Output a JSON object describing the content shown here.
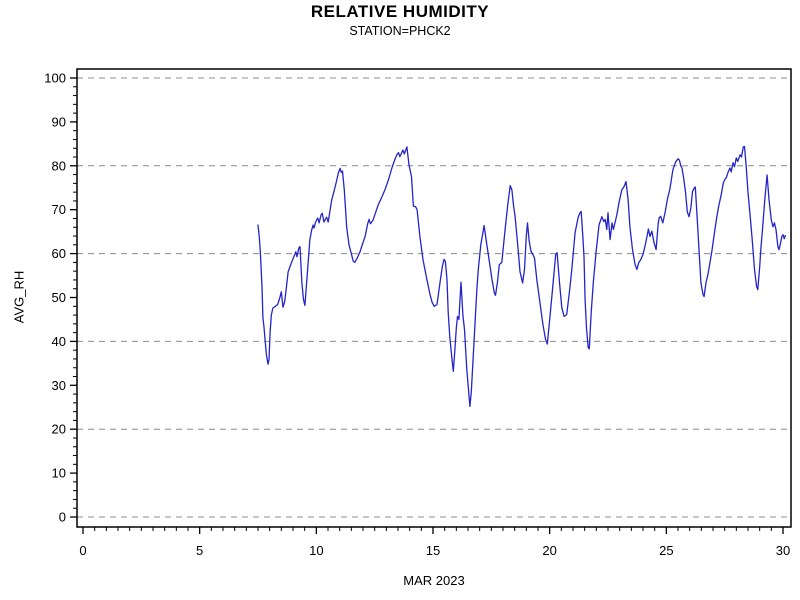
{
  "header": {
    "title": "RELATIVE HUMIDITY",
    "subtitle": "STATION=PHCK2"
  },
  "chart_data": {
    "type": "line",
    "title": "RELATIVE HUMIDITY",
    "subtitle": "STATION=PHCK2",
    "xlabel": "MAR 2023",
    "ylabel": "AVG_RH",
    "xlim": [
      0,
      30
    ],
    "ylim": [
      0,
      100
    ],
    "x_major_ticks": [
      0,
      5,
      10,
      15,
      20,
      25,
      30
    ],
    "x_minor_step": 0.5,
    "y_major_ticks": [
      0,
      10,
      20,
      30,
      40,
      50,
      60,
      70,
      80,
      90,
      100
    ],
    "y_minor_step": 2,
    "gridlines_y": [
      0,
      20,
      40,
      60,
      80,
      100
    ],
    "grid_style": "dashed",
    "legend_position": "none",
    "line_color": "#2424C8",
    "grid_color": "#8C8C8C",
    "axis_color": "#000000",
    "series": [
      {
        "name": "AVG_RH",
        "points": [
          [
            7.5,
            66.5
          ],
          [
            7.55,
            64
          ],
          [
            7.6,
            60.5
          ],
          [
            7.67,
            52.5
          ],
          [
            7.71,
            45.5
          ],
          [
            7.76,
            43
          ],
          [
            7.8,
            40.5
          ],
          [
            7.86,
            37
          ],
          [
            7.93,
            34.8
          ],
          [
            7.97,
            35.8
          ],
          [
            8.02,
            42
          ],
          [
            8.07,
            46
          ],
          [
            8.14,
            47.6
          ],
          [
            8.25,
            48
          ],
          [
            8.35,
            48.5
          ],
          [
            8.44,
            50
          ],
          [
            8.5,
            51.3
          ],
          [
            8.57,
            47.8
          ],
          [
            8.64,
            49
          ],
          [
            8.72,
            52.5
          ],
          [
            8.79,
            55.8
          ],
          [
            8.9,
            57.5
          ],
          [
            9.0,
            58.8
          ],
          [
            9.07,
            59.7
          ],
          [
            9.12,
            60.4
          ],
          [
            9.17,
            59.3
          ],
          [
            9.25,
            61.3
          ],
          [
            9.3,
            61.6
          ],
          [
            9.38,
            53.3
          ],
          [
            9.45,
            49.5
          ],
          [
            9.51,
            48.2
          ],
          [
            9.58,
            53
          ],
          [
            9.65,
            58.1
          ],
          [
            9.72,
            63.1
          ],
          [
            9.8,
            65.4
          ],
          [
            9.86,
            66.5
          ],
          [
            9.9,
            65.8
          ],
          [
            9.97,
            67.2
          ],
          [
            10.06,
            68.1
          ],
          [
            10.12,
            67
          ],
          [
            10.2,
            68.8
          ],
          [
            10.25,
            69.2
          ],
          [
            10.33,
            67.2
          ],
          [
            10.44,
            68.3
          ],
          [
            10.51,
            67.2
          ],
          [
            10.59,
            69.9
          ],
          [
            10.66,
            72.2
          ],
          [
            10.75,
            74
          ],
          [
            10.85,
            76.2
          ],
          [
            10.95,
            78.5
          ],
          [
            11.02,
            79.4
          ],
          [
            11.07,
            78.5
          ],
          [
            11.12,
            78.8
          ],
          [
            11.2,
            74.5
          ],
          [
            11.3,
            66
          ],
          [
            11.4,
            62
          ],
          [
            11.5,
            60
          ],
          [
            11.58,
            58.3
          ],
          [
            11.65,
            58
          ],
          [
            11.75,
            59
          ],
          [
            11.87,
            60.4
          ],
          [
            12.0,
            62.5
          ],
          [
            12.09,
            63.9
          ],
          [
            12.2,
            66.8
          ],
          [
            12.26,
            67.8
          ],
          [
            12.32,
            66.8
          ],
          [
            12.43,
            67.6
          ],
          [
            12.55,
            69.5
          ],
          [
            12.65,
            71.1
          ],
          [
            12.8,
            72.8
          ],
          [
            12.94,
            74.5
          ],
          [
            13.1,
            77
          ],
          [
            13.24,
            79.5
          ],
          [
            13.35,
            81.2
          ],
          [
            13.45,
            82.5
          ],
          [
            13.52,
            83
          ],
          [
            13.58,
            82.1
          ],
          [
            13.71,
            83.6
          ],
          [
            13.77,
            82.7
          ],
          [
            13.88,
            84.3
          ],
          [
            13.97,
            80.2
          ],
          [
            14.08,
            77.5
          ],
          [
            14.16,
            70.8
          ],
          [
            14.25,
            70.7
          ],
          [
            14.32,
            70
          ],
          [
            14.44,
            63.9
          ],
          [
            14.57,
            58.6
          ],
          [
            14.74,
            54.1
          ],
          [
            14.87,
            50.7
          ],
          [
            14.96,
            48.9
          ],
          [
            15.05,
            48
          ],
          [
            15.17,
            48.4
          ],
          [
            15.3,
            53.4
          ],
          [
            15.4,
            57
          ],
          [
            15.47,
            58.7
          ],
          [
            15.53,
            58.2
          ],
          [
            15.6,
            54
          ],
          [
            15.65,
            46.6
          ],
          [
            15.72,
            41
          ],
          [
            15.8,
            36.6
          ],
          [
            15.87,
            33.2
          ],
          [
            15.93,
            37.5
          ],
          [
            16.0,
            43
          ],
          [
            16.05,
            45.7
          ],
          [
            16.11,
            45
          ],
          [
            16.2,
            53.5
          ],
          [
            16.28,
            46
          ],
          [
            16.35,
            42.7
          ],
          [
            16.45,
            33.6
          ],
          [
            16.52,
            29
          ],
          [
            16.58,
            25.2
          ],
          [
            16.64,
            28.5
          ],
          [
            16.72,
            36
          ],
          [
            16.8,
            44
          ],
          [
            16.88,
            52
          ],
          [
            16.94,
            56.4
          ],
          [
            17.05,
            62
          ],
          [
            17.19,
            66.4
          ],
          [
            17.28,
            63
          ],
          [
            17.37,
            59.8
          ],
          [
            17.53,
            54.1
          ],
          [
            17.63,
            51
          ],
          [
            17.68,
            50.5
          ],
          [
            17.76,
            53.4
          ],
          [
            17.84,
            57.5
          ],
          [
            17.95,
            58
          ],
          [
            18.09,
            65.5
          ],
          [
            18.2,
            71
          ],
          [
            18.31,
            75.5
          ],
          [
            18.38,
            74.5
          ],
          [
            18.45,
            71
          ],
          [
            18.52,
            68.4
          ],
          [
            18.62,
            62.5
          ],
          [
            18.73,
            55.9
          ],
          [
            18.84,
            53.3
          ],
          [
            18.92,
            56.4
          ],
          [
            19.0,
            64
          ],
          [
            19.05,
            67
          ],
          [
            19.12,
            63
          ],
          [
            19.2,
            60.5
          ],
          [
            19.28,
            59.8
          ],
          [
            19.35,
            59
          ],
          [
            19.45,
            54.1
          ],
          [
            19.58,
            48.9
          ],
          [
            19.71,
            43.9
          ],
          [
            19.82,
            40.5
          ],
          [
            19.9,
            39.4
          ],
          [
            20.0,
            45
          ],
          [
            20.12,
            51.8
          ],
          [
            20.26,
            59.8
          ],
          [
            20.32,
            60.2
          ],
          [
            20.42,
            53.4
          ],
          [
            20.52,
            47.7
          ],
          [
            20.62,
            45.7
          ],
          [
            20.73,
            46.1
          ],
          [
            20.86,
            51.8
          ],
          [
            20.95,
            56.4
          ],
          [
            21.09,
            64.8
          ],
          [
            21.22,
            68.2
          ],
          [
            21.3,
            69.3
          ],
          [
            21.35,
            69.6
          ],
          [
            21.42,
            64
          ],
          [
            21.47,
            59.3
          ],
          [
            21.52,
            49.5
          ],
          [
            21.58,
            43
          ],
          [
            21.65,
            38.6
          ],
          [
            21.7,
            38.3
          ],
          [
            21.78,
            46.6
          ],
          [
            21.87,
            53.4
          ],
          [
            22.0,
            60.9
          ],
          [
            22.12,
            66.6
          ],
          [
            22.24,
            68.4
          ],
          [
            22.32,
            67.3
          ],
          [
            22.38,
            67.8
          ],
          [
            22.45,
            65.5
          ],
          [
            22.5,
            69.3
          ],
          [
            22.59,
            63.2
          ],
          [
            22.67,
            67
          ],
          [
            22.73,
            65.5
          ],
          [
            22.88,
            68.9
          ],
          [
            22.97,
            71.6
          ],
          [
            23.09,
            74.5
          ],
          [
            23.18,
            75.2
          ],
          [
            23.27,
            76.4
          ],
          [
            23.36,
            72.3
          ],
          [
            23.44,
            66.1
          ],
          [
            23.55,
            60.9
          ],
          [
            23.66,
            57.5
          ],
          [
            23.74,
            56.4
          ],
          [
            23.82,
            58
          ],
          [
            23.9,
            58.6
          ],
          [
            24.0,
            59.8
          ],
          [
            24.1,
            62
          ],
          [
            24.17,
            63.9
          ],
          [
            24.23,
            65.6
          ],
          [
            24.3,
            63.9
          ],
          [
            24.38,
            65.1
          ],
          [
            24.47,
            62.5
          ],
          [
            24.56,
            60.9
          ],
          [
            24.65,
            66.9
          ],
          [
            24.7,
            68.2
          ],
          [
            24.76,
            68.5
          ],
          [
            24.85,
            67
          ],
          [
            24.95,
            69.5
          ],
          [
            25.05,
            72.5
          ],
          [
            25.15,
            74.6
          ],
          [
            25.28,
            79.1
          ],
          [
            25.4,
            80.9
          ],
          [
            25.5,
            81.6
          ],
          [
            25.56,
            81.3
          ],
          [
            25.62,
            80
          ],
          [
            25.67,
            79.5
          ],
          [
            25.75,
            77
          ],
          [
            25.82,
            74
          ],
          [
            25.9,
            69.5
          ],
          [
            25.97,
            68.4
          ],
          [
            26.05,
            70.3
          ],
          [
            26.12,
            74.1
          ],
          [
            26.18,
            74.8
          ],
          [
            26.24,
            75.2
          ],
          [
            26.32,
            68.4
          ],
          [
            26.4,
            60.9
          ],
          [
            26.48,
            53.4
          ],
          [
            26.57,
            50.7
          ],
          [
            26.62,
            50.2
          ],
          [
            26.7,
            53.4
          ],
          [
            26.78,
            55.2
          ],
          [
            26.87,
            58
          ],
          [
            26.96,
            60.9
          ],
          [
            27.08,
            65.5
          ],
          [
            27.16,
            68.2
          ],
          [
            27.24,
            70.7
          ],
          [
            27.35,
            73.4
          ],
          [
            27.44,
            76.1
          ],
          [
            27.52,
            77
          ],
          [
            27.57,
            77.3
          ],
          [
            27.65,
            78.6
          ],
          [
            27.73,
            79.5
          ],
          [
            27.78,
            78.6
          ],
          [
            27.86,
            80.7
          ],
          [
            27.92,
            79.8
          ],
          [
            28.0,
            81.8
          ],
          [
            28.06,
            81
          ],
          [
            28.16,
            82.5
          ],
          [
            28.22,
            82
          ],
          [
            28.3,
            84.3
          ],
          [
            28.35,
            84.4
          ],
          [
            28.42,
            80.2
          ],
          [
            28.5,
            73.9
          ],
          [
            28.6,
            68.2
          ],
          [
            28.68,
            63.2
          ],
          [
            28.78,
            56.4
          ],
          [
            28.87,
            52.5
          ],
          [
            28.92,
            51.8
          ],
          [
            29.0,
            57
          ],
          [
            29.05,
            60.9
          ],
          [
            29.12,
            65.5
          ],
          [
            29.22,
            72.3
          ],
          [
            29.32,
            77.9
          ],
          [
            29.4,
            72.3
          ],
          [
            29.5,
            67.7
          ],
          [
            29.57,
            66.1
          ],
          [
            29.63,
            67
          ],
          [
            29.7,
            65.5
          ],
          [
            29.78,
            61.6
          ],
          [
            29.83,
            60.9
          ],
          [
            29.88,
            62
          ],
          [
            29.95,
            63.9
          ],
          [
            30.0,
            64.3
          ],
          [
            30.05,
            63.4
          ],
          [
            30.1,
            64.1
          ]
        ]
      }
    ]
  }
}
